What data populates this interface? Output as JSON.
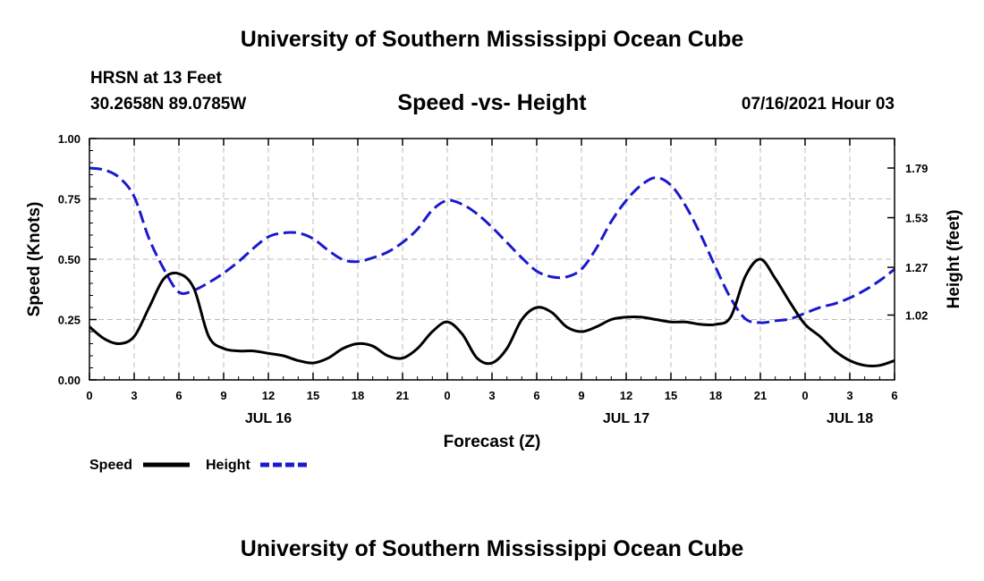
{
  "header": {
    "title": "University of Southern Mississippi Ocean Cube",
    "station": "HRSN at 13 Feet",
    "coordinates": "30.2658N  89.0785W",
    "subtitle": "Speed -vs- Height",
    "datetime": "07/16/2021 Hour 03"
  },
  "footer": {
    "title": "University of Southern Mississippi Ocean Cube"
  },
  "colors": {
    "speed": "#000000",
    "height": "#1a1acc",
    "grid": "#bbbbbb"
  },
  "chart_data": {
    "type": "line",
    "title": "Speed -vs- Height",
    "xlabel": "Forecast (Z)",
    "ylabel": "Speed (Knots)",
    "y2label": "Height (feet)",
    "x_unit": "hours since 07/16 00Z",
    "xlim": [
      0,
      54
    ],
    "ylim": [
      0,
      1.0
    ],
    "y2lim": [
      0.6806,
      1.9444
    ],
    "x_ticks": [
      0,
      3,
      6,
      9,
      12,
      15,
      18,
      21,
      24,
      27,
      30,
      33,
      36,
      39,
      42,
      45,
      48,
      51,
      54
    ],
    "x_tick_labels": [
      "0",
      "3",
      "6",
      "9",
      "12",
      "15",
      "18",
      "21",
      "0",
      "3",
      "6",
      "9",
      "12",
      "15",
      "18",
      "21",
      "0",
      "3",
      "6"
    ],
    "y_ticks": [
      0,
      0.25,
      0.5,
      0.75,
      1.0
    ],
    "y_tick_labels": [
      "0.00",
      "0.25",
      "0.50",
      "0.75",
      "1.00"
    ],
    "y2_ticks": [
      1.02,
      1.27,
      1.53,
      1.79
    ],
    "y2_tick_labels": [
      "1.02",
      "1.27",
      "1.53",
      "1.79"
    ],
    "day_labels": [
      {
        "x": 12,
        "label": "JUL 16"
      },
      {
        "x": 36,
        "label": "JUL 17"
      },
      {
        "x": 51,
        "label": "JUL 18"
      }
    ],
    "grid": true,
    "legend": {
      "position": "bottom-left",
      "entries": [
        "Speed",
        "Height"
      ]
    },
    "series": [
      {
        "name": "Speed",
        "axis": "left",
        "style": "solid",
        "x": [
          0,
          1,
          2,
          3,
          4,
          5,
          6,
          7,
          8,
          9,
          10,
          11,
          12,
          13,
          14,
          15,
          16,
          17,
          18,
          19,
          20,
          21,
          22,
          23,
          24,
          25,
          26,
          27,
          28,
          29,
          30,
          31,
          32,
          33,
          34,
          35,
          36,
          37,
          38,
          39,
          40,
          41,
          42,
          43,
          44,
          45,
          46,
          47,
          48,
          49,
          50,
          51,
          52,
          53,
          54
        ],
        "values": [
          0.22,
          0.17,
          0.15,
          0.18,
          0.3,
          0.42,
          0.44,
          0.38,
          0.18,
          0.13,
          0.12,
          0.12,
          0.11,
          0.1,
          0.08,
          0.07,
          0.09,
          0.13,
          0.15,
          0.14,
          0.1,
          0.09,
          0.13,
          0.2,
          0.24,
          0.19,
          0.09,
          0.07,
          0.13,
          0.25,
          0.3,
          0.28,
          0.22,
          0.2,
          0.22,
          0.25,
          0.26,
          0.26,
          0.25,
          0.24,
          0.24,
          0.23,
          0.23,
          0.26,
          0.43,
          0.5,
          0.42,
          0.32,
          0.23,
          0.18,
          0.12,
          0.08,
          0.06,
          0.06,
          0.08
        ]
      },
      {
        "name": "Height",
        "axis": "right",
        "style": "dashed",
        "x": [
          0,
          1,
          2,
          3,
          4,
          5,
          6,
          7,
          8,
          9,
          10,
          11,
          12,
          13,
          14,
          15,
          16,
          17,
          18,
          19,
          20,
          21,
          22,
          23,
          24,
          25,
          26,
          27,
          28,
          29,
          30,
          31,
          32,
          33,
          34,
          35,
          36,
          37,
          38,
          39,
          40,
          41,
          42,
          43,
          44,
          45,
          46,
          47,
          48,
          49,
          50,
          51,
          52,
          53,
          54
        ],
        "values": [
          1.79,
          1.78,
          1.74,
          1.64,
          1.42,
          1.26,
          1.14,
          1.15,
          1.19,
          1.24,
          1.3,
          1.37,
          1.43,
          1.45,
          1.45,
          1.42,
          1.36,
          1.31,
          1.3,
          1.32,
          1.35,
          1.4,
          1.47,
          1.57,
          1.62,
          1.6,
          1.55,
          1.48,
          1.4,
          1.32,
          1.25,
          1.22,
          1.22,
          1.26,
          1.37,
          1.51,
          1.62,
          1.7,
          1.74,
          1.7,
          1.59,
          1.44,
          1.27,
          1.11,
          1.0,
          0.98,
          0.99,
          1.0,
          1.03,
          1.06,
          1.08,
          1.11,
          1.15,
          1.2,
          1.26
        ]
      }
    ]
  }
}
